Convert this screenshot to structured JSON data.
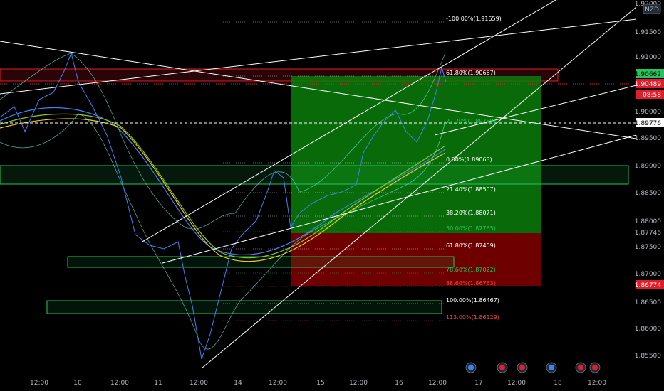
{
  "currency_badge": "NZD",
  "price_axis": {
    "ticks": [
      "1.92000",
      "1.91500",
      "1.91000",
      "1.90500",
      "1.90000",
      "1.89500",
      "1.89000",
      "1.88500",
      "1.88000",
      "1.87500",
      "1.87000",
      "1.86500",
      "1.86000",
      "1.85500"
    ],
    "tags": {
      "upper": {
        "value": "1.90662",
        "bg": "#22c55e",
        "fg": "#000000"
      },
      "last": {
        "value": "1.90489",
        "bg": "#e11d2a",
        "fg": "#ffffff"
      },
      "countdown": {
        "value": "08:58",
        "bg": "#e11d2a",
        "fg": "#ffffff"
      },
      "crosshair": {
        "value": "1.89776",
        "bg": "#ffffff",
        "fg": "#000000"
      },
      "mid": {
        "value": "1.87746",
        "bg": "none",
        "fg": "#b2b5be"
      },
      "stop": {
        "value": "1.86774",
        "bg": "#e11d2a",
        "fg": "#ffffff"
      }
    }
  },
  "time_axis": [
    "12:00",
    "10",
    "12:00",
    "11",
    "12:00",
    "14",
    "12:00",
    "15",
    "12:00",
    "16",
    "12:00",
    "17",
    "12:00",
    "18",
    "12:00"
  ],
  "fib_levels": [
    {
      "label": "-100.00%(1.91659)",
      "color": "#ffffff"
    },
    {
      "label": "61.80%(1.90667)",
      "color": "#ffffff"
    },
    {
      "label": "27.20%(1.89769)",
      "color": "#22c55e"
    },
    {
      "label": "0.00%(1.89063)",
      "color": "#ffffff"
    },
    {
      "label": "21.40%(1.88507)",
      "color": "#ffffff"
    },
    {
      "label": "38.20%(1.88071)",
      "color": "#ffffff"
    },
    {
      "label": "50.00%(1.87765)",
      "color": "#22c55e"
    },
    {
      "label": "61.80%(1.87459)",
      "color": "#ffffff"
    },
    {
      "label": "78.60%(1.87022)",
      "color": "#22c55e"
    },
    {
      "label": "88.60%(1.86763)",
      "color": "#ef4444"
    },
    {
      "label": "100.00%(1.86467)",
      "color": "#ffffff"
    },
    {
      "label": "113.00%(1.86129)",
      "color": "#ef4444"
    }
  ],
  "colors": {
    "profit": "#0b8a0b",
    "loss": "#8b0000",
    "zone_green": "#22c55e",
    "zone_red": "#e11d2a"
  },
  "event_icons": [
    {
      "name": "flag-event-icon-1",
      "color": "#3b82f6"
    },
    {
      "name": "flag-event-icon-2",
      "color": "#e11d2a"
    },
    {
      "name": "flag-event-icon-3",
      "color": "#e11d2a"
    },
    {
      "name": "flag-event-icon-4",
      "color": "#3b82f6"
    },
    {
      "name": "flag-event-icon-5",
      "color": "#e11d2a"
    },
    {
      "name": "flag-event-icon-6",
      "color": "#e11d2a"
    }
  ]
}
